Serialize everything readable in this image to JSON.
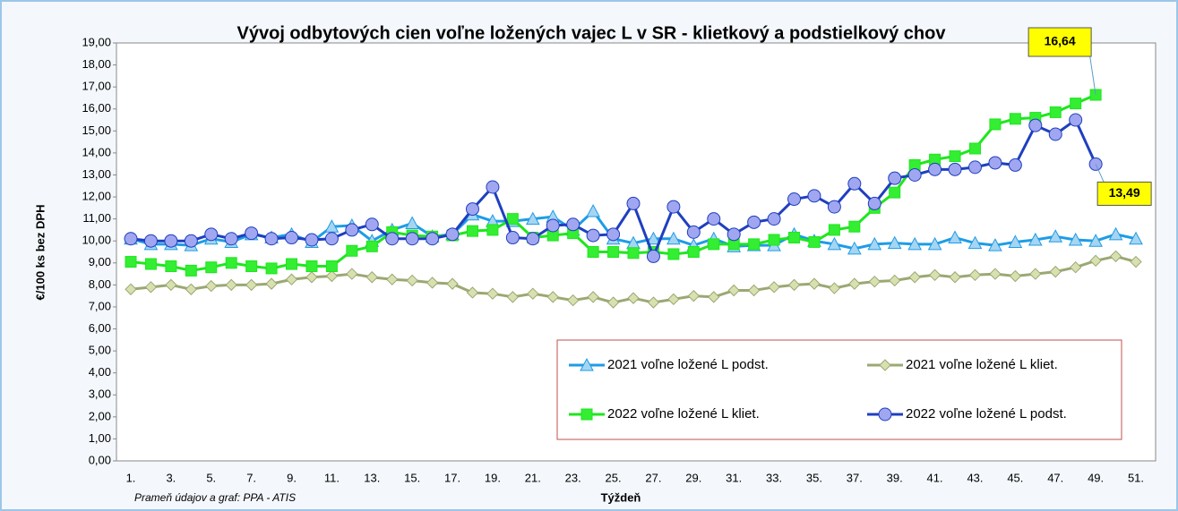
{
  "chart_data": {
    "type": "line",
    "title": "Vývoj odbytových cien voľne ložených vajec L v SR - klietkový a podstielkový chov",
    "y_label": "€/100 ks bez DPH",
    "x_label": "Týždeň",
    "source": "Prameň údajov a graf: PPA - ATIS",
    "categories": [
      "1.",
      null,
      "3.",
      null,
      "5.",
      null,
      "7.",
      null,
      "9.",
      null,
      "11.",
      null,
      "13.",
      null,
      "15.",
      null,
      "17.",
      null,
      "19.",
      null,
      "21.",
      null,
      "23.",
      null,
      "25.",
      null,
      "27.",
      null,
      "29.",
      null,
      "31.",
      null,
      "33.",
      null,
      "35.",
      null,
      "37.",
      null,
      "39.",
      null,
      "41.",
      null,
      "43.",
      null,
      "45.",
      null,
      "47.",
      null,
      "49.",
      null,
      "51."
    ],
    "ylim": [
      0,
      19
    ],
    "yticks": [
      {
        "value": 0,
        "label": "0,00"
      },
      {
        "value": 1,
        "label": "1,00"
      },
      {
        "value": 2,
        "label": "2,00"
      },
      {
        "value": 3,
        "label": "3,00"
      },
      {
        "value": 4,
        "label": "4,00"
      },
      {
        "value": 5,
        "label": "5,00"
      },
      {
        "value": 6,
        "label": "6,00"
      },
      {
        "value": 7,
        "label": "7,00"
      },
      {
        "value": 8,
        "label": "8,00"
      },
      {
        "value": 9,
        "label": "9,00"
      },
      {
        "value": 10,
        "label": "10,00"
      },
      {
        "value": 11,
        "label": "11,00"
      },
      {
        "value": 12,
        "label": "12,00"
      },
      {
        "value": 13,
        "label": "13,00"
      },
      {
        "value": 14,
        "label": "14,00"
      },
      {
        "value": 15,
        "label": "15,00"
      },
      {
        "value": 16,
        "label": "16,00"
      },
      {
        "value": 17,
        "label": "17,00"
      },
      {
        "value": 18,
        "label": "18,00"
      },
      {
        "value": 19,
        "label": "19,00"
      }
    ],
    "grid": false,
    "series": [
      {
        "name": "2021 voľne ložené L podst.",
        "color": "#1e9ce6",
        "marker": "triangle",
        "marker_color": "#a6d5f2",
        "values": [
          10.1,
          9.85,
          9.85,
          9.8,
          10.1,
          9.95,
          10.3,
          10.15,
          10.3,
          9.95,
          10.65,
          10.7,
          10.0,
          10.5,
          10.8,
          10.2,
          10.3,
          11.2,
          10.9,
          10.9,
          11.0,
          11.1,
          10.5,
          11.35,
          10.1,
          9.9,
          10.1,
          10.1,
          9.8,
          10.1,
          9.75,
          9.8,
          9.8,
          10.3,
          10.0,
          9.85,
          9.65,
          9.85,
          9.9,
          9.85,
          9.85,
          10.15,
          9.9,
          9.8,
          9.95,
          10.05,
          10.2,
          10.05,
          10.0,
          10.3,
          10.1
        ]
      },
      {
        "name": "2021 voľne ložené L kliet.",
        "color": "#9aa873",
        "marker": "diamond",
        "marker_color": "#d8e0b0",
        "values": [
          7.8,
          7.9,
          8.0,
          7.8,
          7.95,
          8.0,
          8.0,
          8.05,
          8.25,
          8.35,
          8.4,
          8.5,
          8.35,
          8.25,
          8.2,
          8.1,
          8.05,
          7.65,
          7.6,
          7.45,
          7.6,
          7.45,
          7.3,
          7.45,
          7.2,
          7.4,
          7.2,
          7.35,
          7.5,
          7.45,
          7.75,
          7.75,
          7.9,
          8.0,
          8.05,
          7.85,
          8.05,
          8.15,
          8.2,
          8.35,
          8.45,
          8.35,
          8.45,
          8.5,
          8.4,
          8.5,
          8.6,
          8.8,
          9.1,
          9.3,
          9.05
        ]
      },
      {
        "name": "2022 voľne ložené L kliet.",
        "color": "#1ee61e",
        "marker": "square",
        "marker_color": "#33ee33",
        "values": [
          9.05,
          8.95,
          8.85,
          8.65,
          8.8,
          9.0,
          8.85,
          8.75,
          8.95,
          8.85,
          8.85,
          9.55,
          9.75,
          10.4,
          10.25,
          10.2,
          10.25,
          10.45,
          10.5,
          11.0,
          10.15,
          10.25,
          10.35,
          9.5,
          9.5,
          9.45,
          9.5,
          9.4,
          9.5,
          9.85,
          9.85,
          9.85,
          10.05,
          10.15,
          9.95,
          10.5,
          10.65,
          11.5,
          12.2,
          13.45,
          13.7,
          13.85,
          14.2,
          15.3,
          15.55,
          15.6,
          15.85,
          16.25,
          16.64,
          null,
          null
        ],
        "value_labels": [
          null,
          null,
          null,
          null,
          null,
          null,
          null,
          null,
          null,
          null,
          null,
          null,
          null,
          null,
          null,
          null,
          null,
          null,
          null,
          null,
          null,
          null,
          null,
          null,
          null,
          null,
          null,
          null,
          null,
          null,
          null,
          null,
          null,
          null,
          null,
          null,
          null,
          null,
          null,
          null,
          null,
          null,
          null,
          null,
          null,
          null,
          null,
          null,
          "16,64",
          null,
          null
        ]
      },
      {
        "name": "2022 voľne ložené L podst.",
        "color": "#1f3fbf",
        "marker": "circle",
        "marker_color": "#a0a6f0",
        "values": [
          10.1,
          10.0,
          10.0,
          10.0,
          10.3,
          10.1,
          10.35,
          10.1,
          10.15,
          10.05,
          10.1,
          10.5,
          10.75,
          10.1,
          10.1,
          10.1,
          10.3,
          11.45,
          12.45,
          10.15,
          10.1,
          10.7,
          10.75,
          10.25,
          10.3,
          11.7,
          9.3,
          11.55,
          10.4,
          11.0,
          10.3,
          10.85,
          11.0,
          11.9,
          12.05,
          11.55,
          12.6,
          11.7,
          12.85,
          13.0,
          13.25,
          13.25,
          13.35,
          13.55,
          13.45,
          15.25,
          14.85,
          15.5,
          13.49,
          null,
          null
        ],
        "value_labels": [
          null,
          null,
          null,
          null,
          null,
          null,
          null,
          null,
          null,
          null,
          null,
          null,
          null,
          null,
          null,
          null,
          null,
          null,
          null,
          null,
          null,
          null,
          null,
          null,
          null,
          null,
          null,
          null,
          null,
          null,
          null,
          null,
          null,
          null,
          null,
          null,
          null,
          null,
          null,
          null,
          null,
          null,
          null,
          null,
          null,
          null,
          null,
          null,
          "13,49",
          null,
          null
        ]
      }
    ]
  }
}
